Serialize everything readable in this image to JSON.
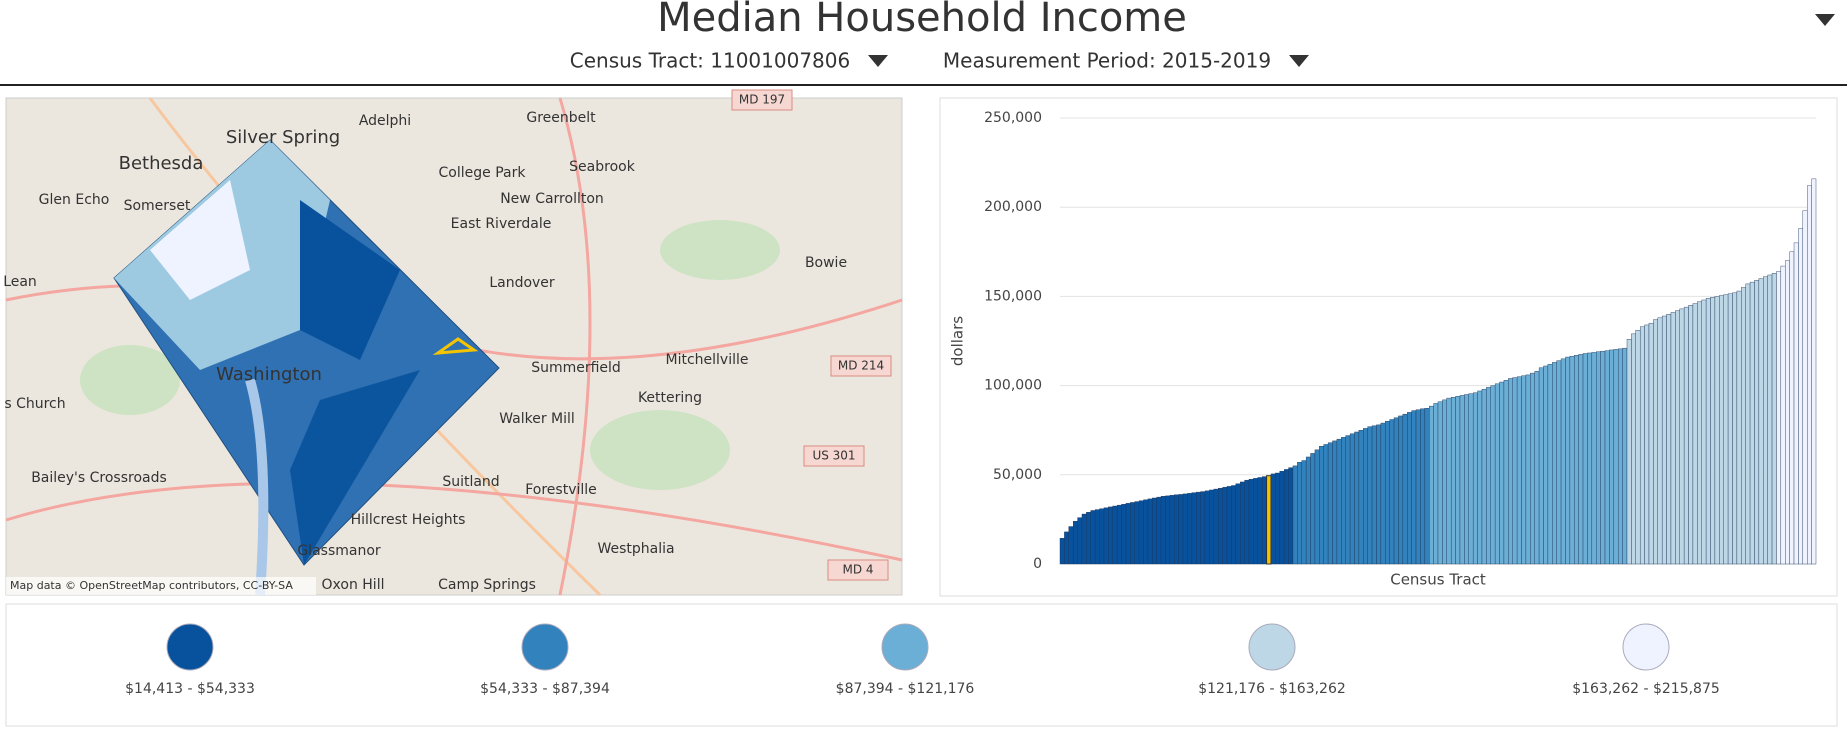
{
  "header": {
    "title": "Median Household Income",
    "tract_selector": "Census Tract: 11001007806",
    "period_selector": "Measurement Period: 2015-2019"
  },
  "map": {
    "labels": [
      "Silver Spring",
      "Bethesda",
      "Washington",
      "Adelphi",
      "Greenbelt",
      "College Park",
      "Seabrook",
      "New Carrollton",
      "East Riverdale",
      "Bowie",
      "Landover",
      "Mitchellville",
      "Summerfield",
      "Kettering",
      "Walker Mill",
      "Suitland",
      "Forestville",
      "Hillcrest Heights",
      "Westphalia",
      "Glassmanor",
      "Camp Springs",
      "Oxon Hill",
      "Bailey's Crossroads",
      "Glen Echo",
      "Somerset",
      "Lean",
      "s Church"
    ],
    "shields": [
      "MD 214",
      "US 301",
      "MD 4",
      "MD 197"
    ],
    "attribution": "Map data © OpenStreetMap contributors, CC-BY-SA"
  },
  "legend": [
    {
      "label": "$14,413 - $54,333",
      "min": 14413,
      "max": 54333,
      "color": "#08519c"
    },
    {
      "label": "$54,333 - $87,394",
      "min": 54333,
      "max": 87394,
      "color": "#3182bd"
    },
    {
      "label": "$87,394 - $121,176",
      "min": 87394,
      "max": 121176,
      "color": "#6baed6"
    },
    {
      "label": "$121,176 - $163,262",
      "min": 121176,
      "max": 163262,
      "color": "#bdd7e7"
    },
    {
      "label": "$163,262 - $215,875",
      "min": 163262,
      "max": 215875,
      "color": "#eff3ff"
    }
  ],
  "chart_data": {
    "type": "bar",
    "x_label": "Census Tract",
    "y_label": "dollars",
    "ylim": [
      0,
      250000
    ],
    "yticks": [
      0,
      {
        "value": 50000,
        "label": "50,000"
      },
      {
        "value": 100000,
        "label": "100,000"
      },
      {
        "value": 150000,
        "label": "150,000"
      },
      {
        "value": 200000,
        "label": "200,000"
      },
      {
        "value": 250000,
        "label": "250,000"
      }
    ],
    "grid": true,
    "selected": 47,
    "selected_color": "#f5c400",
    "values": [
      14413,
      18000,
      21000,
      24000,
      26000,
      28000,
      29000,
      30000,
      30500,
      31000,
      31500,
      32000,
      32500,
      33000,
      33500,
      34000,
      34500,
      35000,
      35500,
      36000,
      36500,
      37000,
      37500,
      38000,
      38200,
      38500,
      38800,
      39000,
      39300,
      39600,
      40000,
      40300,
      40600,
      41000,
      41500,
      42000,
      42500,
      43000,
      43500,
      44000,
      45000,
      46000,
      47000,
      47500,
      48000,
      48500,
      49000,
      49500,
      50500,
      51000,
      52000,
      53000,
      54000,
      55000,
      57000,
      58000,
      60000,
      62000,
      64000,
      66000,
      67000,
      68000,
      69000,
      70000,
      71000,
      72000,
      73000,
      74000,
      75000,
      76000,
      77000,
      77500,
      78000,
      79000,
      80000,
      81000,
      82000,
      83000,
      84000,
      85000,
      86000,
      86500,
      87000,
      87300,
      88500,
      90000,
      91000,
      92000,
      93000,
      93500,
      94000,
      94500,
      95000,
      95500,
      96000,
      97000,
      98000,
      99000,
      100000,
      101000,
      102000,
      103000,
      104000,
      104500,
      105000,
      105500,
      106000,
      107000,
      108000,
      110000,
      111000,
      112000,
      113000,
      114000,
      115000,
      116000,
      116500,
      117000,
      117500,
      118000,
      118300,
      118600,
      119000,
      119300,
      119600,
      120000,
      120300,
      120600,
      121000,
      126000,
      129000,
      131000,
      133000,
      134000,
      135000,
      137000,
      138000,
      139000,
      140000,
      141000,
      142000,
      143000,
      144000,
      145000,
      146000,
      147000,
      148000,
      149000,
      149500,
      150000,
      150500,
      151000,
      151500,
      152000,
      153000,
      155000,
      157000,
      158000,
      159000,
      160000,
      161000,
      162000,
      163000,
      164000,
      167000,
      170000,
      175000,
      180000,
      188000,
      198000,
      212000,
      215875
    ]
  }
}
